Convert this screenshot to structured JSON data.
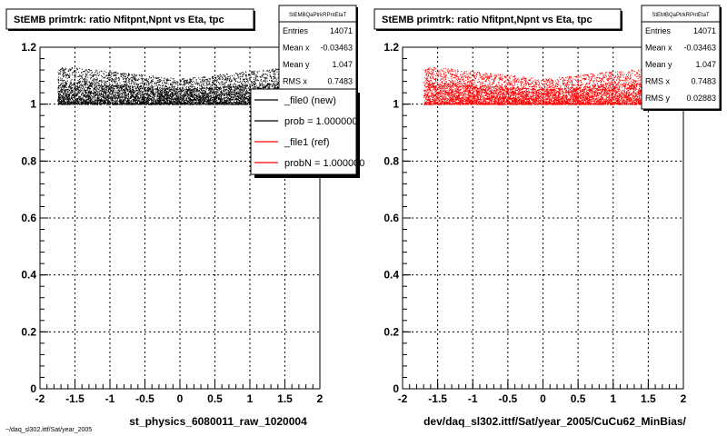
{
  "chart_data": [
    {
      "type": "scatter",
      "title": "StEMB primtrk: ratio Nfitpnt,Npnt vs Eta, tpc",
      "xlabel": "st_physics_6080011_raw_1020004",
      "ylabel": "",
      "xlim": [
        -2,
        2
      ],
      "ylim": [
        0,
        1.2
      ],
      "x_ticks": [
        "-2",
        "-1.5",
        "-1",
        "-0.5",
        "0",
        "0.5",
        "1",
        "1.5",
        "2"
      ],
      "y_ticks": [
        "0",
        "0.2",
        "0.4",
        "0.6",
        "0.8",
        "1",
        "1.2"
      ],
      "grid": true,
      "point_color": "#000000",
      "point_region": {
        "x": [
          -1.75,
          1.5
        ],
        "y_lower": 1.0,
        "y_upper_edge": 1.13,
        "y_upper_center": 1.09
      },
      "stats": {
        "name": "StEMBQaPtrkRPntEtaT",
        "rows": [
          {
            "label": "Entries",
            "value": "14071"
          },
          {
            "label": "Mean x",
            "value": "-0.03463"
          },
          {
            "label": "Mean y",
            "value": "1.047"
          },
          {
            "label": "RMS x",
            "value": "0.7483"
          }
        ]
      },
      "legend": {
        "entries": [
          {
            "label": "_file0 (new)",
            "color": "#000000"
          },
          {
            "label": "prob = 1.000000",
            "color": "#000000"
          },
          {
            "label": "_file1 (ref)",
            "color": "#ff0000"
          },
          {
            "label": "probN = 1.000000",
            "color": "#ff0000"
          }
        ]
      },
      "footnote": "~/daq_sl302.ittf/Sat/year_2005"
    },
    {
      "type": "scatter",
      "title": "StEMB primtrk: ratio Nfitpnt,Npnt vs Eta, tpc",
      "xlabel": "dev/daq_sl302.ittf/Sat/year_2005/CuCu62_MinBias/",
      "ylabel": "",
      "xlim": [
        -2,
        2
      ],
      "ylim": [
        0,
        1.2
      ],
      "x_ticks": [
        "-2",
        "-1.5",
        "-1",
        "-0.5",
        "0",
        "0.5",
        "1",
        "1.5",
        "2"
      ],
      "y_ticks": [
        "0",
        "0.2",
        "0.4",
        "0.6",
        "0.8",
        "1",
        "1.2"
      ],
      "grid": true,
      "point_color": "#ff0000",
      "point_region": {
        "x": [
          -1.7,
          1.5
        ],
        "y_lower": 1.0,
        "y_upper_edge": 1.13,
        "y_upper_center": 1.09
      },
      "stats": {
        "name": "StEMBQaPtrkRPntEtaT",
        "rows": [
          {
            "label": "Entries",
            "value": "14071"
          },
          {
            "label": "Mean x",
            "value": "-0.03463"
          },
          {
            "label": "Mean y",
            "value": "1.047"
          },
          {
            "label": "RMS x",
            "value": "0.7483"
          },
          {
            "label": "RMS y",
            "value": "0.02883"
          }
        ]
      }
    }
  ]
}
